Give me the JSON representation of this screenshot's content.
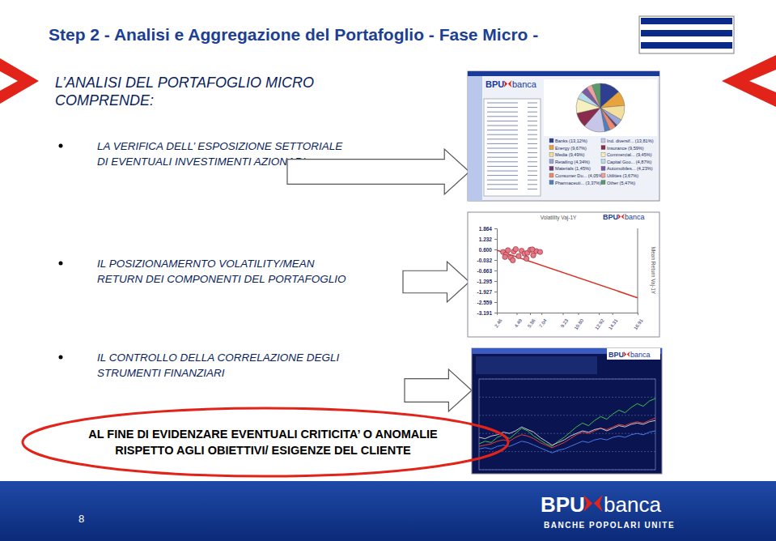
{
  "header": {
    "title": "Step 2 - Analisi e Aggregazione del Portafoglio - Fase Micro -"
  },
  "intro": [
    "L’ANALISI DEL PORTAFOGLIO MICRO",
    "COMPRENDE:"
  ],
  "bullets": [
    [
      "LA VERIFICA DELL’ ESPOSIZIONE SETTORIALE",
      "DI EVENTUALI INVESTIMENTI AZIONARI"
    ],
    [
      "IL POSIZIONAMERNTO VOLATILITY/MEAN",
      "RETURN DEI COMPONENTI DEL PORTAFOGLIO"
    ],
    [
      "IL CONTROLLO DELLA CORRELAZIONE DEGLI",
      "STRUMENTI FINANZIARI"
    ]
  ],
  "conclusion": [
    "AL FINE DI EVIDENZARE EVENTUALI CRITICITA’ O ANOMALIE",
    "RISPETTO AGLI OBIETTIVI/ ESIGENZE DEL CLIENTE"
  ],
  "logo": {
    "brand": "BPU",
    "word": "banca",
    "tagline": "BANCHE POPOLARI UNITE"
  },
  "footer": {
    "page": "8"
  },
  "chart_data": [
    {
      "type": "pie",
      "categories": [
        "Banks (13,12%)",
        "Energy (9,67%)",
        "Media (9,49%)",
        "Retailing (4,34%)",
        "Materials (1,45%)",
        "Consumer Du... (4,05%)",
        "Pharmaceuti... (3,37%)",
        "Ind. diversif... (13,81%)",
        "Insurance (9,59%)",
        "Commercial... (9,45%)",
        "Capital Goo... (4,87%)",
        "Automobiles... (4,23%)",
        "Utilities (3,67%)",
        "Other (5,47%)"
      ],
      "values": [
        13.12,
        9.67,
        9.49,
        4.34,
        1.45,
        4.05,
        3.37,
        13.81,
        9.59,
        9.45,
        4.87,
        4.23,
        3.67,
        5.47
      ],
      "colors": [
        "#2e3f8f",
        "#e8a33c",
        "#f2dfa0",
        "#9aa6d8",
        "#6b3d7a",
        "#ee8a6b",
        "#4f7fbf",
        "#c8c6e8",
        "#8a2b4e",
        "#f4f0c0",
        "#b8dcea",
        "#7a5aa0",
        "#f0a0a0",
        "#5a9a6a"
      ]
    },
    {
      "type": "scatter",
      "x_label": "Volatility Vaj-1Y",
      "y_label": "Mean Return Vaj-1Y",
      "x": [
        3.1,
        3.4,
        3.6,
        3.9,
        4.2,
        4.4,
        4.7,
        5.0,
        5.3,
        5.6,
        5.9,
        6.2,
        6.5,
        6.9,
        4.1,
        5.5,
        3.3,
        6.1
      ],
      "values": [
        0.45,
        0.3,
        0.55,
        0.1,
        0.48,
        0.62,
        0.2,
        0.52,
        0.35,
        0.4,
        0.58,
        0.25,
        0.5,
        0.45,
        -0.05,
        0.05,
        0.15,
        0.6
      ],
      "color": "#e87a86",
      "trend": {
        "x": [
          2.46,
          16.91
        ],
        "values": [
          0.55,
          -2.3
        ],
        "color": "#d83020"
      },
      "xlim": [
        2.46,
        16.91
      ],
      "xticks": [
        2.46,
        4.49,
        5.86,
        7.04,
        9.23,
        {
          "value": 10.8,
          "label": "10.80"
        },
        12.92,
        14.31,
        16.91
      ],
      "ylim": [
        -3.191,
        1.864
      ],
      "yticks": [
        1.864,
        1.232,
        {
          "value": 0.6,
          "label": "0.600"
        },
        -0.032,
        -0.663,
        -1.295,
        -1.927,
        -2.559,
        -3.191
      ]
    },
    {
      "type": "line",
      "tick_labels": false,
      "xlim": [
        0,
        29
      ],
      "ylim": [
        20,
        90
      ],
      "series": [
        {
          "color": "#3fc04a",
          "values": [
            40,
            42,
            41,
            45,
            47,
            44,
            48,
            52,
            50,
            46,
            43,
            40,
            38,
            42,
            45,
            49,
            53,
            56,
            54,
            58,
            61,
            59,
            63,
            66,
            64,
            68,
            71,
            69,
            73,
            75
          ]
        },
        {
          "color": "#e0403a",
          "values": [
            38,
            39,
            40,
            42,
            43,
            42,
            45,
            47,
            46,
            44,
            41,
            39,
            37,
            39,
            41,
            44,
            47,
            49,
            48,
            50,
            52,
            51,
            53,
            55,
            54,
            56,
            57,
            56,
            58,
            60
          ]
        },
        {
          "color": "#c8c8d0",
          "values": [
            45,
            44,
            46,
            47,
            49,
            48,
            50,
            53,
            51,
            49,
            45,
            42,
            39,
            41,
            43,
            46,
            48,
            50,
            49,
            51,
            52,
            50,
            52,
            54,
            53,
            55,
            56,
            55,
            57,
            58
          ]
        },
        {
          "color": "#4a7ae8",
          "values": [
            36,
            37,
            36,
            38,
            39,
            38,
            40,
            42,
            41,
            39,
            37,
            35,
            33,
            35,
            36,
            38,
            40,
            42,
            41,
            43,
            44,
            43,
            45,
            46,
            45,
            47,
            48,
            47,
            49,
            50
          ]
        }
      ]
    }
  ]
}
